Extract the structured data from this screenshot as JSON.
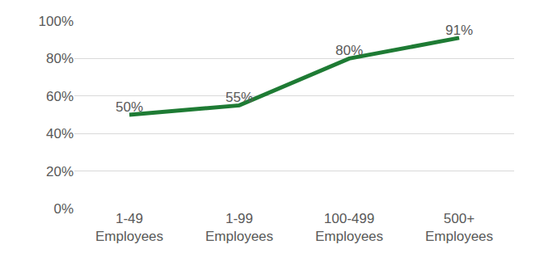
{
  "chart_data": {
    "type": "line",
    "categories": [
      "1-49 Employees",
      "1-99 Employees",
      "100-499 Employees",
      "500+ Employees"
    ],
    "values": [
      50,
      55,
      80,
      91
    ],
    "value_labels": [
      "50%",
      "55%",
      "80%",
      "91%"
    ],
    "data_labels": true,
    "color": "#1e7b34",
    "ylim": [
      0,
      100
    ],
    "yticks": [
      {
        "value": 0,
        "label": "0%"
      },
      {
        "value": 20,
        "label": "20%"
      },
      {
        "value": 40,
        "label": "40%"
      },
      {
        "value": 60,
        "label": "60%"
      },
      {
        "value": 80,
        "label": "80%"
      },
      {
        "value": 100,
        "label": "100%"
      }
    ],
    "grid": true
  }
}
